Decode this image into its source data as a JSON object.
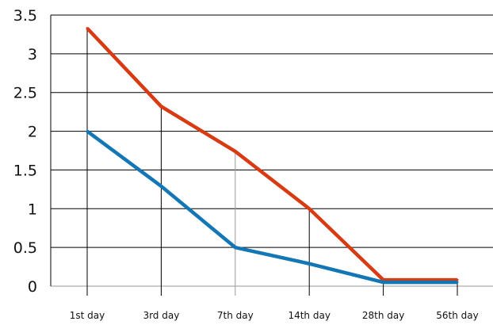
{
  "chart_data": {
    "type": "line",
    "title": "",
    "xlabel": "",
    "ylabel": "",
    "categories": [
      "1st day",
      "3rd day",
      "7th day",
      "14th day",
      "28th day",
      "56th day"
    ],
    "ylim": [
      0,
      3.5
    ],
    "yticks": [
      "0",
      "0.5",
      "1",
      "1.5",
      "2",
      "2.5",
      "3",
      "3.5"
    ],
    "grid": true,
    "legend": "none",
    "series": [
      {
        "color": "#d83a12",
        "values": [
          3.33,
          2.32,
          1.74,
          1.0,
          0.08,
          0.08
        ]
      },
      {
        "color": "#1377b5",
        "values": [
          2.0,
          1.29,
          0.5,
          0.29,
          0.05,
          0.05
        ]
      }
    ]
  }
}
